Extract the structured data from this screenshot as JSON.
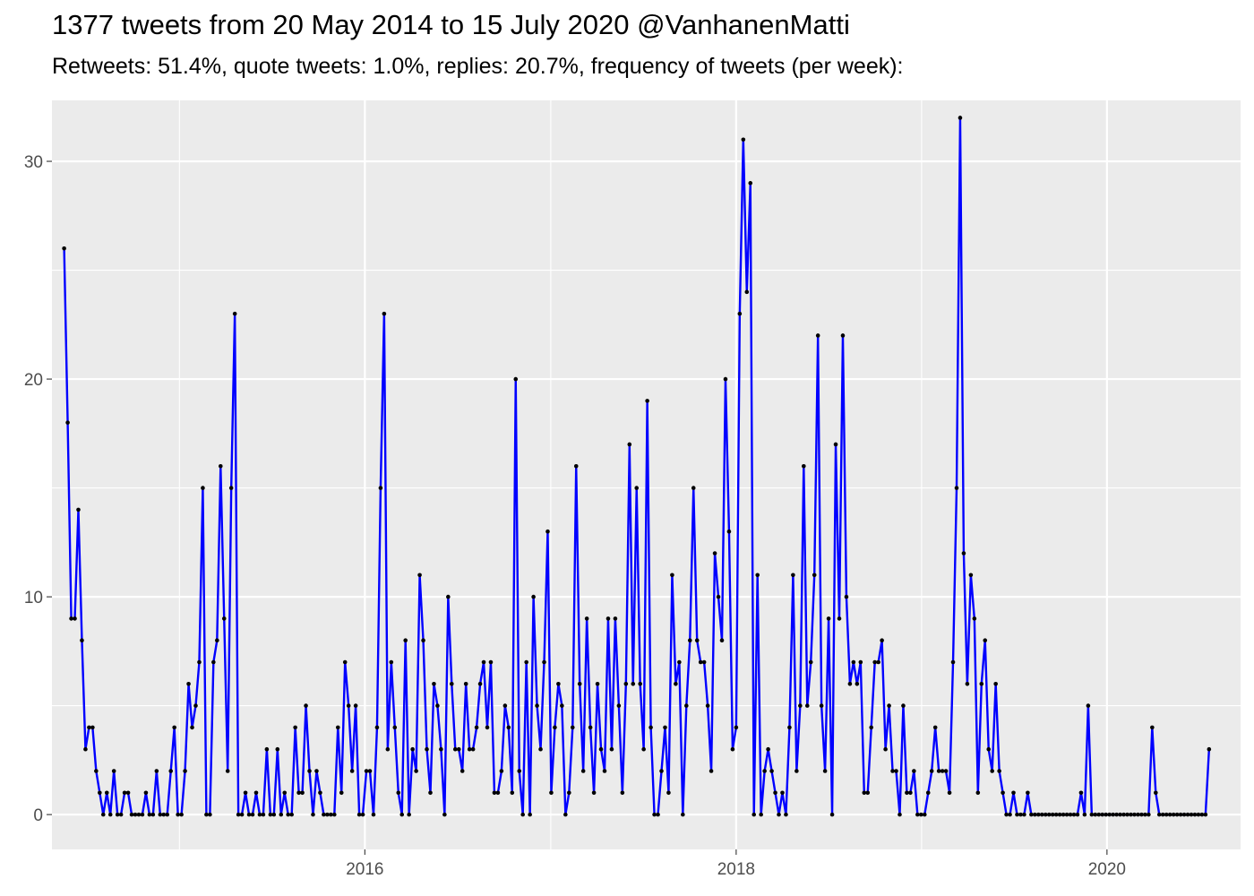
{
  "title": "1377 tweets from 20 May 2014 to 15 July 2020 @VanhanenMatti",
  "subtitle": "Retweets: 51.4%, quote tweets: 1.0%, replies: 20.7%, frequency of tweets (per week):",
  "chart_data": {
    "type": "line",
    "title": "1377 tweets from 20 May 2014 to 15 July 2020 @VanhanenMatti",
    "subtitle": "Retweets: 51.4%, quote tweets: 1.0%, replies: 20.7%, frequency of tweets (per week):",
    "xlabel": "",
    "ylabel": "",
    "x_ticks": [
      "2016",
      "2018",
      "2020"
    ],
    "y_ticks": [
      0,
      10,
      20,
      30
    ],
    "xlim": [
      "2014-04-25",
      "2020-09-20"
    ],
    "ylim": [
      -1.6,
      32.8
    ],
    "grid": true,
    "legend": "none",
    "line_color": "#0000ff",
    "point_color": "#000000",
    "panel_color": "#ebebeb",
    "start_date": "2014-05-19",
    "step_days": 7,
    "values": [
      26,
      18,
      9,
      9,
      14,
      8,
      3,
      4,
      4,
      2,
      1,
      0,
      1,
      0,
      2,
      0,
      0,
      1,
      1,
      0,
      0,
      0,
      0,
      1,
      0,
      0,
      2,
      0,
      0,
      0,
      2,
      4,
      0,
      0,
      2,
      6,
      4,
      5,
      7,
      15,
      0,
      0,
      7,
      8,
      16,
      9,
      2,
      15,
      23,
      0,
      0,
      1,
      0,
      0,
      1,
      0,
      0,
      3,
      0,
      0,
      3,
      0,
      1,
      0,
      0,
      4,
      1,
      1,
      5,
      2,
      0,
      2,
      1,
      0,
      0,
      0,
      0,
      4,
      1,
      7,
      5,
      2,
      5,
      0,
      0,
      2,
      2,
      0,
      4,
      15,
      23,
      3,
      7,
      4,
      1,
      0,
      8,
      0,
      3,
      2,
      11,
      8,
      3,
      1,
      6,
      5,
      3,
      0,
      10,
      6,
      3,
      3,
      2,
      6,
      3,
      3,
      4,
      6,
      7,
      4,
      7,
      1,
      1,
      2,
      5,
      4,
      1,
      20,
      2,
      0,
      7,
      0,
      10,
      5,
      3,
      7,
      13,
      1,
      4,
      6,
      5,
      0,
      1,
      4,
      16,
      6,
      2,
      9,
      4,
      1,
      6,
      3,
      2,
      9,
      3,
      9,
      5,
      1,
      6,
      17,
      6,
      15,
      6,
      3,
      19,
      4,
      0,
      0,
      2,
      4,
      1,
      11,
      6,
      7,
      0,
      5,
      8,
      15,
      8,
      7,
      7,
      5,
      2,
      12,
      10,
      8,
      20,
      13,
      3,
      4,
      23,
      31,
      24,
      29,
      0,
      11,
      0,
      2,
      3,
      2,
      1,
      0,
      1,
      0,
      4,
      11,
      2,
      5,
      16,
      5,
      7,
      11,
      22,
      5,
      2,
      9,
      0,
      17,
      9,
      22,
      10,
      6,
      7,
      6,
      7,
      1,
      1,
      4,
      7,
      7,
      8,
      3,
      5,
      2,
      2,
      0,
      5,
      1,
      1,
      2,
      0,
      0,
      0,
      1,
      2,
      4,
      2,
      2,
      2,
      1,
      7,
      15,
      32,
      12,
      6,
      11,
      9,
      1,
      6,
      8,
      3,
      2,
      6,
      2,
      1,
      0,
      0,
      1,
      0,
      0,
      0,
      1,
      0,
      0,
      0,
      0,
      0,
      0,
      0,
      0,
      0,
      0,
      0,
      0,
      0,
      0,
      1,
      0,
      5,
      0,
      0,
      0,
      0,
      0,
      0,
      0,
      0,
      0,
      0,
      0,
      0,
      0,
      0,
      0,
      0,
      0,
      4,
      1,
      0,
      0,
      0,
      0,
      0,
      0,
      0,
      0,
      0,
      0,
      0,
      0,
      0,
      0,
      3
    ]
  }
}
